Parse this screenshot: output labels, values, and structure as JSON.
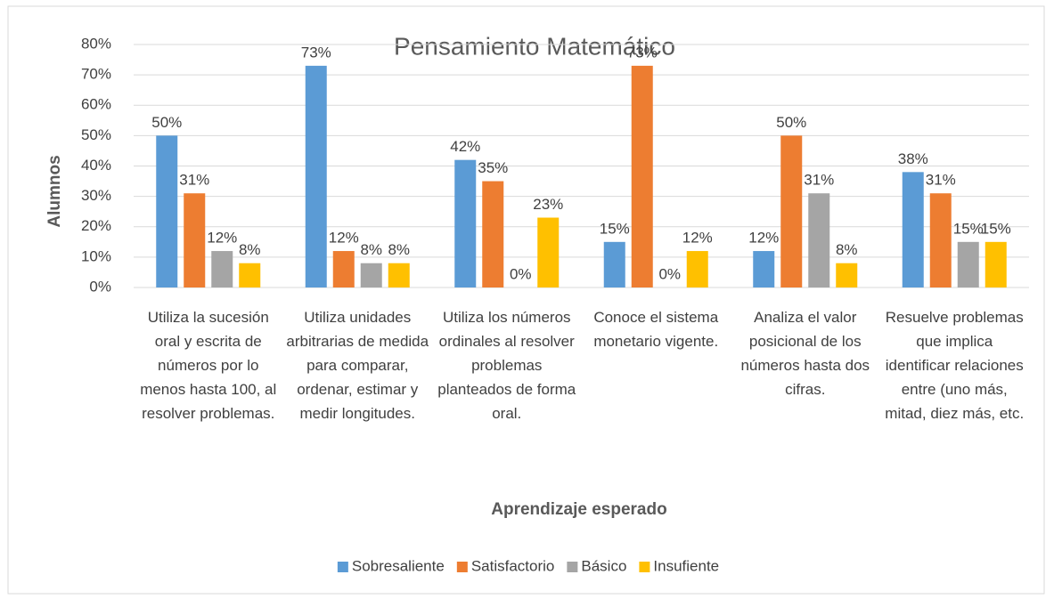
{
  "chart_data": {
    "type": "bar",
    "title": "Pensamiento Matemático",
    "y_label": "Alumnos",
    "x_label": "Aprendizaje esperado",
    "categories": [
      "Utiliza la sucesión oral y escrita de números por lo menos hasta 100, al resolver problemas.",
      "Utiliza unidades arbitrarias de medida para comparar, ordenar, estimar y medir longitudes.",
      "Utiliza los números ordinales al resolver problemas planteados de forma oral.",
      "Conoce el sistema monetario vigente.",
      "Analiza el valor posicional de los números hasta dos cifras.",
      "Resuelve problemas que implica identificar relaciones entre (uno más, mitad, diez más, etc."
    ],
    "series": [
      {
        "name": "Sobresaliente",
        "color": "#5b9bd5",
        "values": [
          50,
          73,
          42,
          15,
          12,
          38
        ],
        "value_labels": [
          "50%",
          "73%",
          "42%",
          "15%",
          "12%",
          "38%"
        ]
      },
      {
        "name": "Satisfactorio",
        "color": "#ed7d31",
        "values": [
          31,
          12,
          35,
          73,
          50,
          31
        ],
        "value_labels": [
          "31%",
          "12%",
          "35%",
          "73%",
          "50%",
          "31%"
        ]
      },
      {
        "name": "Básico",
        "color": "#a5a5a5",
        "values": [
          12,
          8,
          0,
          0,
          31,
          15
        ],
        "value_labels": [
          "12%",
          "8%",
          "0%",
          "0%",
          "31%",
          "15%"
        ]
      },
      {
        "name": "Insufiente",
        "color": "#ffc000",
        "values": [
          8,
          8,
          23,
          12,
          8,
          15
        ],
        "value_labels": [
          "8%",
          "8%",
          "23%",
          "12%",
          "8%",
          "15%"
        ]
      }
    ],
    "ylim": [
      0,
      80
    ],
    "yticks": [
      {
        "value": 0,
        "label": "0%"
      },
      {
        "value": 10,
        "label": "10%"
      },
      {
        "value": 20,
        "label": "20%"
      },
      {
        "value": 30,
        "label": "30%"
      },
      {
        "value": 40,
        "label": "40%"
      },
      {
        "value": 50,
        "label": "50%"
      },
      {
        "value": 60,
        "label": "60%"
      },
      {
        "value": 70,
        "label": "70%"
      },
      {
        "value": 80,
        "label": "80%"
      }
    ],
    "grid": true,
    "legend": "bottom"
  }
}
